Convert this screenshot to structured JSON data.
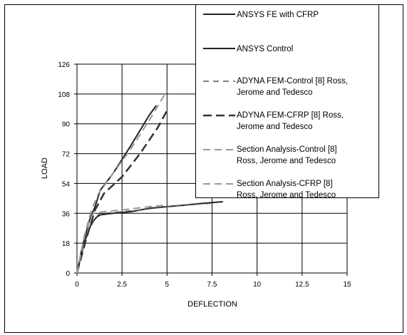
{
  "chart_data": {
    "type": "line",
    "xlabel": "DEFLECTION",
    "ylabel": "LOAD",
    "xlim": [
      0,
      15
    ],
    "ylim": [
      0,
      126
    ],
    "xticks": [
      0,
      2.5,
      5,
      7.5,
      10,
      12.5,
      15
    ],
    "yticks": [
      0,
      18,
      36,
      54,
      72,
      90,
      108,
      126
    ],
    "xtick_labels": [
      "0",
      "2.5",
      "5",
      "7.5",
      "10",
      "12.5",
      "15"
    ],
    "ytick_labels": [
      "0",
      "18",
      "36",
      "54",
      "72",
      "90",
      "108",
      "126"
    ],
    "grid": true,
    "legend_position": "top-right",
    "series": [
      {
        "name": "ANSYS FE with CFRP",
        "color": "#222222",
        "dash": "solid",
        "width": 2,
        "x": [
          0,
          0.3,
          0.7,
          1.0,
          1.3,
          2.0,
          3.0,
          4.0,
          4.4
        ],
        "y": [
          0,
          16,
          32,
          40,
          50,
          60,
          77,
          95,
          101
        ]
      },
      {
        "name": "ANSYS Control",
        "color": "#222222",
        "dash": "solid",
        "width": 2,
        "x": [
          0,
          0.4,
          0.8,
          1.2,
          2.0,
          3.0,
          4.0,
          5.0,
          6.0,
          7.0,
          8.1
        ],
        "y": [
          0,
          18,
          30,
          35,
          36,
          37,
          39,
          40,
          41,
          42,
          43
        ]
      },
      {
        "name": "ADYNA FEM-Control [8] Ross, Jerome and Tedesco",
        "color": "#555555",
        "dash": "8,6",
        "width": 1.5,
        "x": [
          0,
          0.5,
          1.0,
          1.5,
          2.5,
          3.5,
          5.0,
          6.0,
          7.5
        ],
        "y": [
          0,
          22,
          33,
          36,
          37,
          38,
          40,
          41,
          42
        ]
      },
      {
        "name": "ADYNA FEM-CFRP [8] Ross, Jerome and Tedesco",
        "color": "#333333",
        "dash": "12,6",
        "width": 2.5,
        "x": [
          0,
          0.5,
          1.0,
          1.5,
          2.5,
          3.5,
          4.5,
          5.0
        ],
        "y": [
          0,
          20,
          38,
          48,
          58,
          72,
          88,
          98
        ]
      },
      {
        "name": "Section Analysis-Control [8] Ross, Jerome and Tedesco",
        "color": "#999999",
        "dash": "10,6",
        "width": 2,
        "x": [
          0,
          0.5,
          0.9,
          1.5,
          2.5,
          4.0,
          5.0
        ],
        "y": [
          0,
          26,
          36,
          37,
          38,
          40,
          41
        ]
      },
      {
        "name": "Section Analysis-CFRP [8] Ross, Jerome and Tedesco",
        "color": "#999999",
        "dash": "10,6",
        "width": 2,
        "x": [
          0,
          0.4,
          0.8,
          1.2,
          2.0,
          3.0,
          4.0,
          5.0
        ],
        "y": [
          0,
          22,
          38,
          48,
          60,
          75,
          92,
          110
        ]
      }
    ]
  },
  "legend": {
    "items": [
      {
        "lines": [
          "ANSYS FE with CFRP"
        ]
      },
      {
        "lines": [
          "ANSYS Control"
        ]
      },
      {
        "lines": [
          "ADYNA FEM-Control [8] Ross,",
          "Jerome and Tedesco"
        ]
      },
      {
        "lines": [
          "ADYNA FEM-CFRP [8] Ross,",
          "Jerome and Tedesco"
        ]
      },
      {
        "lines": [
          "Section Analysis-Control [8]",
          "Ross, Jerome and Tedesco"
        ]
      },
      {
        "lines": [
          "Section Analysis-CFRP [8]",
          "Ross, Jerome and Tedesco"
        ]
      }
    ]
  }
}
